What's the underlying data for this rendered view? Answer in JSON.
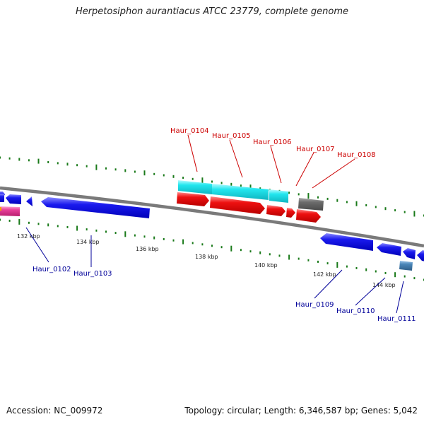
{
  "title": "Herpetosiphon aurantiacus ATCC 23779, complete genome",
  "footer": {
    "accession": "Accession: NC_009972",
    "summary": "Topology: circular; Length: 6,346,587 bp; Genes: 5,042"
  },
  "colors": {
    "label_top": "#cc0000",
    "label_bottom": "#000099",
    "backbone": "#7a7a7a",
    "gc_ticks": "#1a7a1a",
    "blue": "#1a1aee",
    "red": "#ee1111",
    "cyan": "#22e6ee",
    "gray": "#6b6b6b",
    "steel": "#4a86b8",
    "magenta": "#e8409a",
    "orange": "#f5a300"
  },
  "scale": {
    "ticks": [
      {
        "label": "132 kbp"
      },
      {
        "label": "134 kbp"
      },
      {
        "label": "136 kbp"
      },
      {
        "label": "138 kbp"
      },
      {
        "label": "140 kbp"
      },
      {
        "label": "142 kbp"
      },
      {
        "label": "144 kbp"
      }
    ]
  },
  "genes_top": [
    {
      "label": "Haur_0104"
    },
    {
      "label": "Haur_0105"
    },
    {
      "label": "Haur_0106"
    },
    {
      "label": "Haur_0107"
    },
    {
      "label": "Haur_0108"
    }
  ],
  "genes_bottom": [
    {
      "label": "Haur_0102"
    },
    {
      "label": "Haur_0103"
    },
    {
      "label": "Haur_0109"
    },
    {
      "label": "Haur_0110"
    },
    {
      "label": "Haur_0111"
    }
  ]
}
